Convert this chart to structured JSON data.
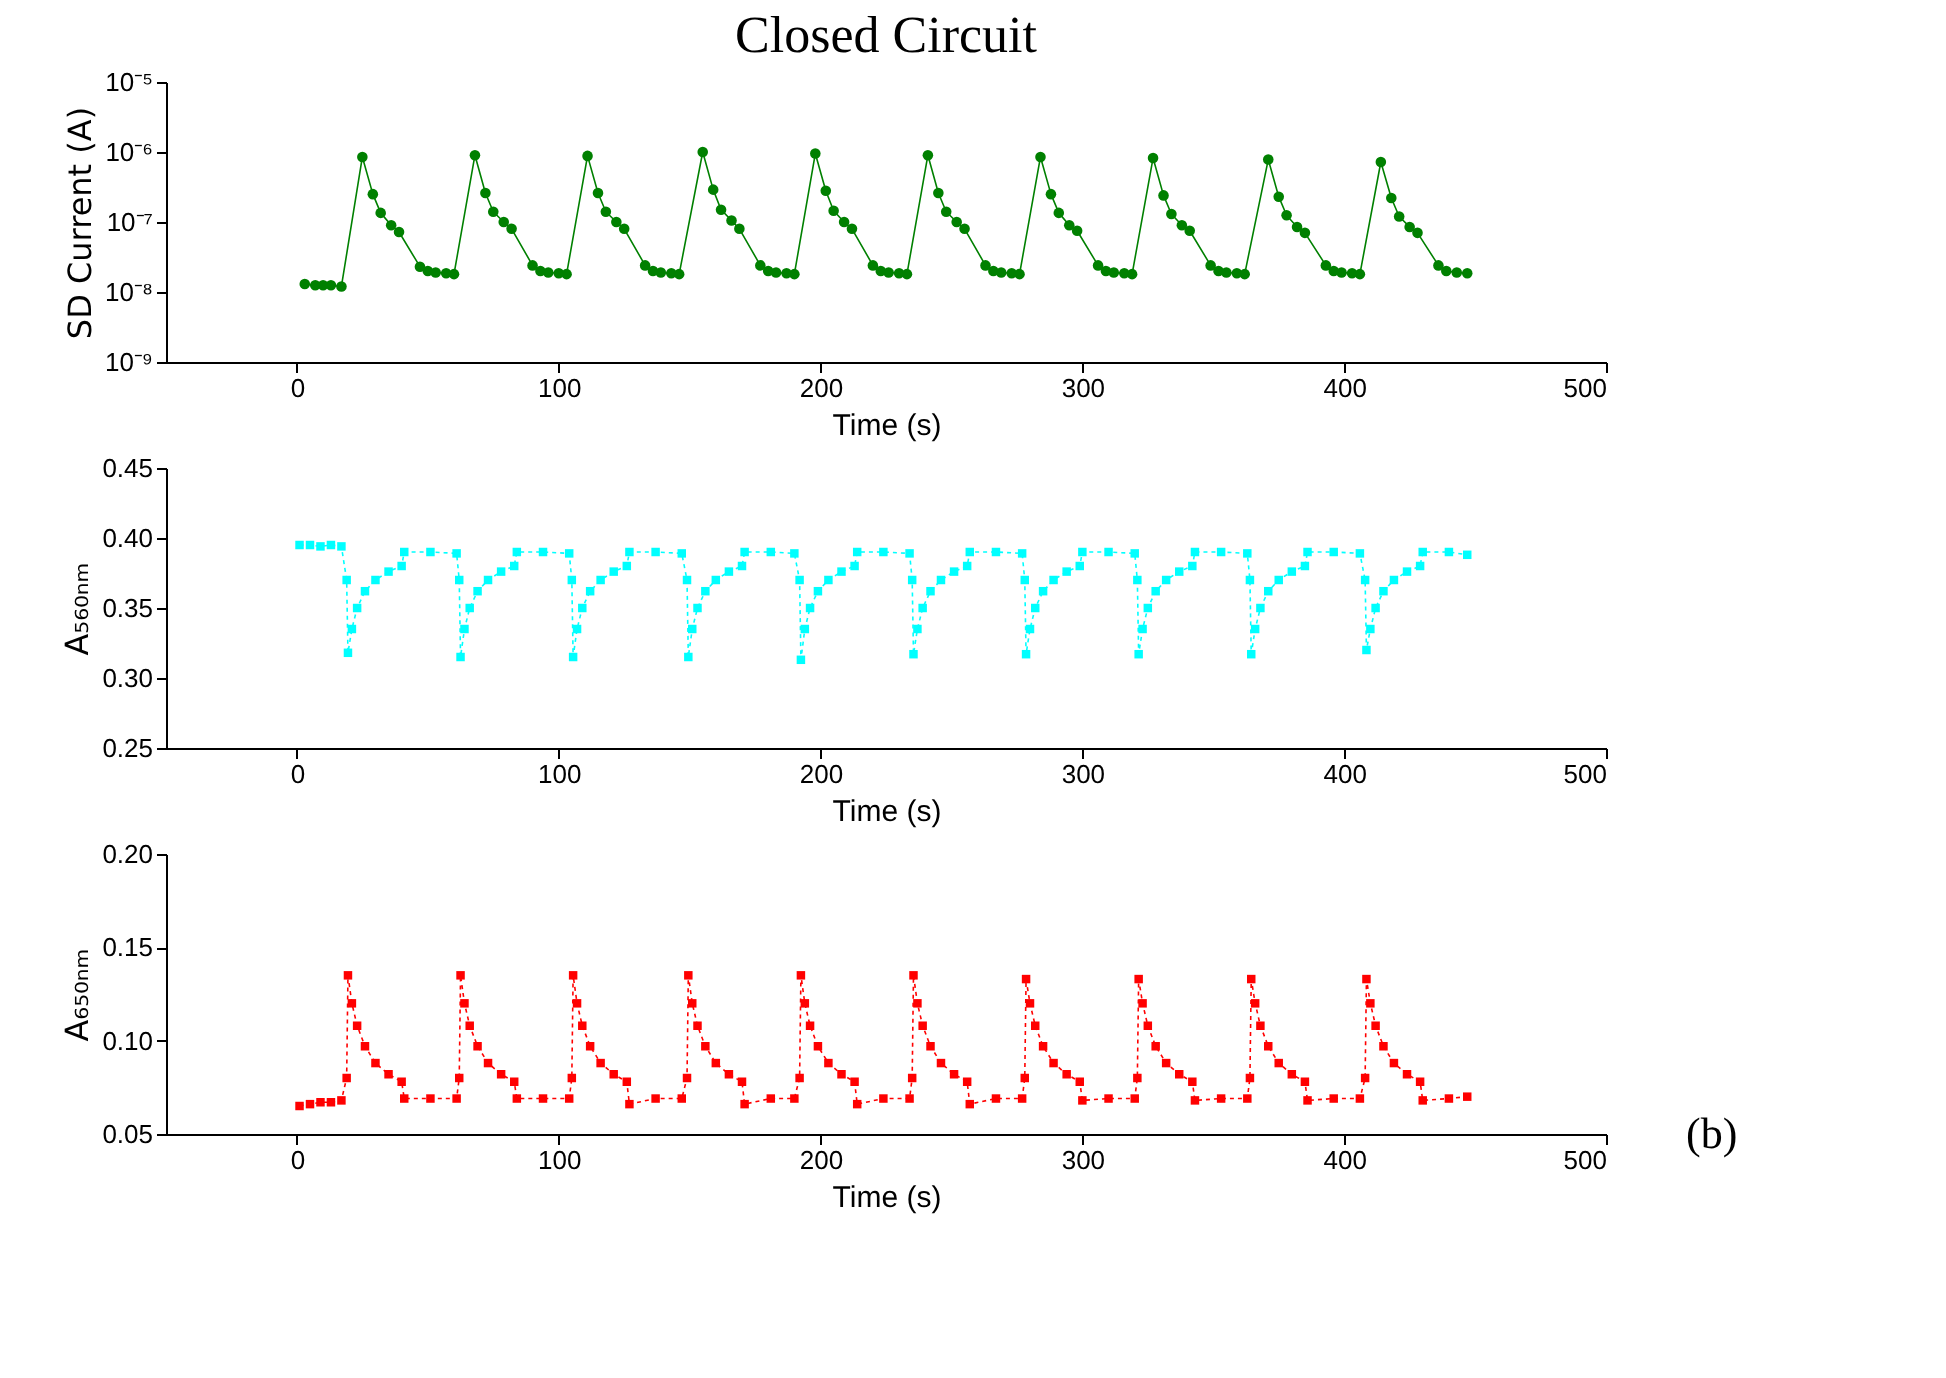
{
  "chart_data": [
    {
      "type": "line",
      "title": "Closed Circuit",
      "ylabel": "SD Current (A)",
      "xlabel": "Time (s)",
      "log": "y",
      "marker": "circle",
      "line_style": "solid",
      "xlim": [
        -50,
        500
      ],
      "xticks": [
        0,
        100,
        200,
        300,
        400,
        500
      ],
      "ylim": [
        1e-09,
        1e-05
      ],
      "yticks": [
        {
          "value": 1e-09,
          "label": "10⁻⁹"
        },
        {
          "value": 1e-08,
          "label": "10⁻⁸"
        },
        {
          "value": 1e-07,
          "label": "10⁻⁷"
        },
        {
          "value": 1e-06,
          "label": "10⁻⁶"
        },
        {
          "value": 1e-05,
          "label": "10⁻⁵"
        }
      ],
      "x": [
        3,
        7,
        10,
        13,
        17,
        25,
        29,
        32,
        36,
        39,
        47,
        50,
        53,
        57,
        60,
        68,
        72,
        75,
        79,
        82,
        90,
        93,
        96,
        100,
        103,
        111,
        115,
        118,
        122,
        125,
        133,
        136,
        139,
        143,
        146,
        155,
        159,
        162,
        166,
        169,
        177,
        180,
        183,
        187,
        190,
        198,
        202,
        205,
        209,
        212,
        220,
        223,
        226,
        230,
        233,
        241,
        245,
        248,
        252,
        255,
        263,
        266,
        269,
        273,
        276,
        284,
        288,
        291,
        295,
        298,
        306,
        309,
        312,
        316,
        319,
        327,
        331,
        334,
        338,
        341,
        349,
        352,
        355,
        359,
        362,
        371,
        375,
        378,
        382,
        385,
        393,
        396,
        399,
        403,
        406,
        414,
        418,
        421,
        425,
        428,
        436,
        439,
        443,
        447
      ],
      "series": [
        {
          "color": "#008000",
          "values": [
            1.3e-08,
            1.25e-08,
            1.25e-08,
            1.25e-08,
            1.2e-08,
            8.5e-07,
            2.5e-07,
            1.35e-07,
            9e-08,
            7.2e-08,
            2.3e-08,
            2e-08,
            1.9e-08,
            1.85e-08,
            1.8e-08,
            9e-07,
            2.6e-07,
            1.4e-07,
            1e-07,
            8e-08,
            2.4e-08,
            2e-08,
            1.9e-08,
            1.85e-08,
            1.8e-08,
            8.8e-07,
            2.6e-07,
            1.4e-07,
            1e-07,
            8e-08,
            2.4e-08,
            2e-08,
            1.9e-08,
            1.85e-08,
            1.8e-08,
            1e-06,
            2.9e-07,
            1.5e-07,
            1.05e-07,
            8e-08,
            2.4e-08,
            2e-08,
            1.9e-08,
            1.85e-08,
            1.8e-08,
            9.5e-07,
            2.8e-07,
            1.45e-07,
            1e-07,
            8e-08,
            2.4e-08,
            2e-08,
            1.9e-08,
            1.85e-08,
            1.8e-08,
            9e-07,
            2.6e-07,
            1.4e-07,
            1e-07,
            8e-08,
            2.4e-08,
            2e-08,
            1.9e-08,
            1.85e-08,
            1.8e-08,
            8.5e-07,
            2.5e-07,
            1.35e-07,
            9e-08,
            7.5e-08,
            2.4e-08,
            2e-08,
            1.9e-08,
            1.85e-08,
            1.8e-08,
            8.2e-07,
            2.4e-07,
            1.3e-07,
            9e-08,
            7.5e-08,
            2.4e-08,
            2e-08,
            1.9e-08,
            1.85e-08,
            1.8e-08,
            7.8e-07,
            2.3e-07,
            1.25e-07,
            8.5e-08,
            7e-08,
            2.4e-08,
            2e-08,
            1.9e-08,
            1.85e-08,
            1.8e-08,
            7.2e-07,
            2.2e-07,
            1.2e-07,
            8.5e-08,
            7e-08,
            2.4e-08,
            2e-08,
            1.9e-08,
            1.85e-08
          ]
        }
      ]
    },
    {
      "type": "line",
      "ylabel": "A₅₆₀ₙₘ",
      "xlabel": "Time (s)",
      "marker": "square",
      "line_style": "dotted",
      "xlim": [
        -50,
        500
      ],
      "xticks": [
        0,
        100,
        200,
        300,
        400,
        500
      ],
      "ylim": [
        0.25,
        0.45
      ],
      "yticks": [
        0.25,
        {
          "value": 0.3,
          "label": "0.30"
        },
        0.35,
        {
          "value": 0.4,
          "label": "0.40"
        },
        0.45
      ],
      "x": [
        1,
        5,
        9,
        13,
        17,
        19,
        19.5,
        21,
        23,
        26,
        30,
        35,
        40,
        41,
        51,
        61,
        62,
        62.5,
        64,
        66,
        69,
        73,
        78,
        83,
        84,
        94,
        104,
        105,
        105.5,
        107,
        109,
        112,
        116,
        121,
        126,
        127,
        137,
        147,
        149,
        149.5,
        151,
        153,
        156,
        160,
        165,
        170,
        171,
        181,
        190,
        192,
        192.5,
        194,
        196,
        199,
        203,
        208,
        213,
        214,
        224,
        234,
        235,
        235.5,
        237,
        239,
        242,
        246,
        251,
        256,
        257,
        267,
        277,
        278,
        278.5,
        280,
        282,
        285,
        289,
        294,
        299,
        300,
        310,
        320,
        321,
        321.5,
        323,
        325,
        328,
        332,
        337,
        342,
        343,
        353,
        363,
        364,
        364.5,
        366,
        368,
        371,
        375,
        380,
        385,
        386,
        396,
        406,
        408,
        408.5,
        410,
        412,
        415,
        419,
        424,
        429,
        430,
        440,
        447
      ],
      "series": [
        {
          "color": "#00ffff",
          "values": [
            0.395,
            0.395,
            0.394,
            0.395,
            0.394,
            0.37,
            0.318,
            0.335,
            0.35,
            0.362,
            0.37,
            0.376,
            0.38,
            0.39,
            0.39,
            0.389,
            0.37,
            0.315,
            0.335,
            0.35,
            0.362,
            0.37,
            0.376,
            0.38,
            0.39,
            0.39,
            0.389,
            0.37,
            0.315,
            0.335,
            0.35,
            0.362,
            0.37,
            0.376,
            0.38,
            0.39,
            0.39,
            0.389,
            0.37,
            0.315,
            0.335,
            0.35,
            0.362,
            0.37,
            0.376,
            0.38,
            0.39,
            0.39,
            0.389,
            0.37,
            0.313,
            0.335,
            0.35,
            0.362,
            0.37,
            0.376,
            0.38,
            0.39,
            0.39,
            0.389,
            0.37,
            0.317,
            0.335,
            0.35,
            0.362,
            0.37,
            0.376,
            0.38,
            0.39,
            0.39,
            0.389,
            0.37,
            0.317,
            0.335,
            0.35,
            0.362,
            0.37,
            0.376,
            0.38,
            0.39,
            0.39,
            0.389,
            0.37,
            0.317,
            0.335,
            0.35,
            0.362,
            0.37,
            0.376,
            0.38,
            0.39,
            0.39,
            0.389,
            0.37,
            0.317,
            0.335,
            0.35,
            0.362,
            0.37,
            0.376,
            0.38,
            0.39,
            0.39,
            0.389,
            0.37,
            0.32,
            0.335,
            0.35,
            0.362,
            0.37,
            0.376,
            0.38,
            0.39,
            0.39,
            0.388
          ]
        }
      ]
    },
    {
      "type": "line",
      "ylabel": "A₆₅₀ₙₘ",
      "xlabel": "Time (s)",
      "marker": "square",
      "line_style": "dotted",
      "annotations": [
        "(b)"
      ],
      "xlim": [
        -50,
        500
      ],
      "xticks": [
        0,
        100,
        200,
        300,
        400,
        500
      ],
      "ylim": [
        0.05,
        0.2
      ],
      "yticks": [
        0.05,
        {
          "value": 0.1,
          "label": "0.10"
        },
        0.15,
        {
          "value": 0.2,
          "label": "0.20"
        }
      ],
      "x": [
        1,
        5,
        9,
        13,
        17,
        19,
        19.5,
        21,
        23,
        26,
        30,
        35,
        40,
        41,
        51,
        61,
        62,
        62.5,
        64,
        66,
        69,
        73,
        78,
        83,
        84,
        94,
        104,
        105,
        105.5,
        107,
        109,
        112,
        116,
        121,
        126,
        127,
        137,
        147,
        149,
        149.5,
        151,
        153,
        156,
        160,
        165,
        170,
        171,
        181,
        190,
        192,
        192.5,
        194,
        196,
        199,
        203,
        208,
        213,
        214,
        224,
        234,
        235,
        235.5,
        237,
        239,
        242,
        246,
        251,
        256,
        257,
        267,
        277,
        278,
        278.5,
        280,
        282,
        285,
        289,
        294,
        299,
        300,
        310,
        320,
        321,
        321.5,
        323,
        325,
        328,
        332,
        337,
        342,
        343,
        353,
        363,
        364,
        364.5,
        366,
        368,
        371,
        375,
        380,
        385,
        386,
        396,
        406,
        408,
        408.5,
        410,
        412,
        415,
        419,
        424,
        429,
        430,
        440,
        447
      ],
      "series": [
        {
          "color": "#ff0000",
          "values": [
            0.065,
            0.066,
            0.067,
            0.067,
            0.068,
            0.08,
            0.135,
            0.12,
            0.108,
            0.097,
            0.088,
            0.082,
            0.078,
            0.069,
            0.069,
            0.069,
            0.08,
            0.135,
            0.12,
            0.108,
            0.097,
            0.088,
            0.082,
            0.078,
            0.069,
            0.069,
            0.069,
            0.08,
            0.135,
            0.12,
            0.108,
            0.097,
            0.088,
            0.082,
            0.078,
            0.066,
            0.069,
            0.069,
            0.08,
            0.135,
            0.12,
            0.108,
            0.097,
            0.088,
            0.082,
            0.078,
            0.066,
            0.069,
            0.069,
            0.08,
            0.135,
            0.12,
            0.108,
            0.097,
            0.088,
            0.082,
            0.078,
            0.066,
            0.069,
            0.069,
            0.08,
            0.135,
            0.12,
            0.108,
            0.097,
            0.088,
            0.082,
            0.078,
            0.066,
            0.069,
            0.069,
            0.08,
            0.133,
            0.12,
            0.108,
            0.097,
            0.088,
            0.082,
            0.078,
            0.068,
            0.069,
            0.069,
            0.08,
            0.133,
            0.12,
            0.108,
            0.097,
            0.088,
            0.082,
            0.078,
            0.068,
            0.069,
            0.069,
            0.08,
            0.133,
            0.12,
            0.108,
            0.097,
            0.088,
            0.082,
            0.078,
            0.068,
            0.069,
            0.069,
            0.08,
            0.133,
            0.12,
            0.108,
            0.097,
            0.088,
            0.082,
            0.078,
            0.068,
            0.069,
            0.07
          ]
        }
      ]
    }
  ]
}
